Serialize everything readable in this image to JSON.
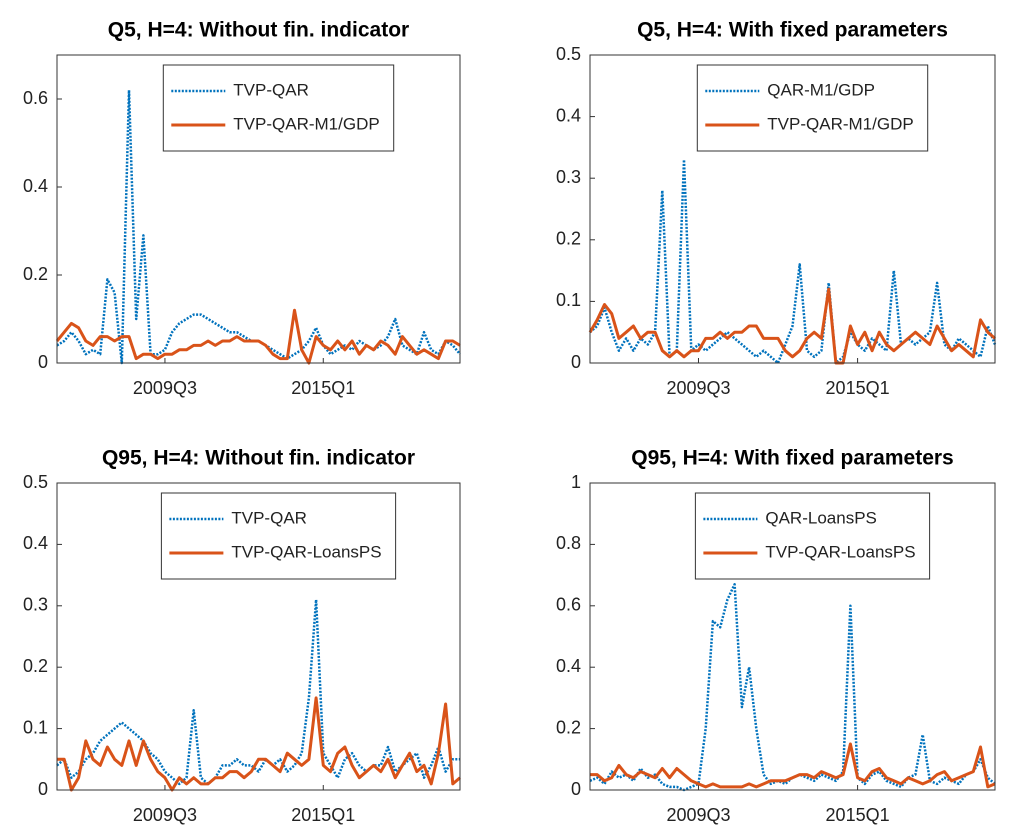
{
  "chart_data": [
    {
      "type": "line",
      "title": "Q5, H=4: Without fin. indicator",
      "categories": [
        null,
        null,
        null,
        null,
        null,
        null,
        null,
        null,
        null,
        null,
        null,
        null,
        null,
        null,
        null,
        "2009Q3",
        null,
        null,
        null,
        null,
        null,
        null,
        null,
        null,
        null,
        null,
        null,
        null,
        null,
        null,
        null,
        null,
        null,
        null,
        null,
        null,
        null,
        "2015Q1",
        null,
        null,
        null,
        null,
        null,
        null,
        null,
        null,
        null,
        null,
        null,
        null,
        null,
        null,
        null,
        null,
        null,
        null,
        null
      ],
      "ylim": [
        0,
        0.7
      ],
      "yticks": [
        0,
        0.2,
        0.4,
        0.6
      ],
      "legend": "north",
      "series": [
        {
          "name": "TVP-QAR",
          "color": "#0072BD",
          "dash": "dotted",
          "values": [
            0.04,
            0.05,
            0.07,
            0.05,
            0.02,
            0.03,
            0.02,
            0.19,
            0.16,
            0.0,
            0.62,
            0.1,
            0.29,
            0.02,
            0.02,
            0.03,
            0.07,
            0.09,
            0.1,
            0.11,
            0.11,
            0.1,
            0.09,
            0.08,
            0.07,
            0.07,
            0.06,
            0.05,
            0.05,
            0.04,
            0.03,
            0.02,
            0.01,
            0.02,
            0.03,
            0.05,
            0.08,
            0.04,
            0.02,
            0.03,
            0.04,
            0.03,
            0.05,
            0.04,
            0.03,
            0.04,
            0.06,
            0.1,
            0.04,
            0.03,
            0.02,
            0.07,
            0.03,
            0.02,
            0.05,
            0.04,
            0.02
          ]
        },
        {
          "name": "TVP-QAR-M1/GDP",
          "color": "#D95319",
          "dash": "solid",
          "values": [
            0.05,
            0.07,
            0.09,
            0.08,
            0.05,
            0.04,
            0.06,
            0.06,
            0.05,
            0.06,
            0.06,
            0.01,
            0.02,
            0.02,
            0.01,
            0.02,
            0.02,
            0.03,
            0.03,
            0.04,
            0.04,
            0.05,
            0.04,
            0.05,
            0.05,
            0.06,
            0.05,
            0.05,
            0.05,
            0.04,
            0.02,
            0.01,
            0.01,
            0.12,
            0.03,
            0.0,
            0.06,
            0.04,
            0.03,
            0.05,
            0.03,
            0.05,
            0.02,
            0.04,
            0.03,
            0.05,
            0.04,
            0.02,
            0.06,
            0.04,
            0.02,
            0.03,
            0.02,
            0.01,
            0.05,
            0.05,
            0.04
          ]
        }
      ]
    },
    {
      "type": "line",
      "title": "Q5, H=4: With fixed parameters",
      "categories": [
        null,
        null,
        null,
        null,
        null,
        null,
        null,
        null,
        null,
        null,
        null,
        null,
        null,
        null,
        null,
        "2009Q3",
        null,
        null,
        null,
        null,
        null,
        null,
        null,
        null,
        null,
        null,
        null,
        null,
        null,
        null,
        null,
        null,
        null,
        null,
        null,
        null,
        null,
        "2015Q1",
        null,
        null,
        null,
        null,
        null,
        null,
        null,
        null,
        null,
        null,
        null,
        null,
        null,
        null,
        null,
        null,
        null,
        null,
        null
      ],
      "ylim": [
        0,
        0.5
      ],
      "yticks": [
        0,
        0.1,
        0.2,
        0.3,
        0.4,
        0.5
      ],
      "legend": "north",
      "series": [
        {
          "name": "QAR-M1/GDP",
          "color": "#0072BD",
          "dash": "dotted",
          "values": [
            0.05,
            0.06,
            0.09,
            0.05,
            0.02,
            0.04,
            0.02,
            0.04,
            0.03,
            0.05,
            0.28,
            0.01,
            0.02,
            0.33,
            0.02,
            0.03,
            0.02,
            0.03,
            0.04,
            0.05,
            0.04,
            0.03,
            0.02,
            0.01,
            0.02,
            0.01,
            0.0,
            0.03,
            0.06,
            0.16,
            0.02,
            0.01,
            0.02,
            0.13,
            0.0,
            0.01,
            0.05,
            0.03,
            0.02,
            0.04,
            0.03,
            0.02,
            0.15,
            0.03,
            0.04,
            0.03,
            0.04,
            0.05,
            0.13,
            0.03,
            0.02,
            0.04,
            0.03,
            0.02,
            0.01,
            0.06,
            0.03
          ]
        },
        {
          "name": "TVP-QAR-M1/GDP",
          "color": "#D95319",
          "dash": "solid",
          "values": [
            0.05,
            0.07,
            0.095,
            0.08,
            0.04,
            0.05,
            0.06,
            0.04,
            0.05,
            0.05,
            0.02,
            0.01,
            0.02,
            0.01,
            0.02,
            0.02,
            0.04,
            0.04,
            0.05,
            0.04,
            0.05,
            0.05,
            0.06,
            0.06,
            0.04,
            0.04,
            0.04,
            0.02,
            0.01,
            0.02,
            0.04,
            0.05,
            0.04,
            0.12,
            0.0,
            0.0,
            0.06,
            0.03,
            0.05,
            0.02,
            0.05,
            0.03,
            0.02,
            0.03,
            0.04,
            0.05,
            0.04,
            0.03,
            0.06,
            0.04,
            0.02,
            0.03,
            0.02,
            0.01,
            0.07,
            0.05,
            0.04
          ]
        }
      ]
    },
    {
      "type": "line",
      "title": "Q95, H=4: Without fin. indicator",
      "categories": [
        null,
        null,
        null,
        null,
        null,
        null,
        null,
        null,
        null,
        null,
        null,
        null,
        null,
        null,
        null,
        "2009Q3",
        null,
        null,
        null,
        null,
        null,
        null,
        null,
        null,
        null,
        null,
        null,
        null,
        null,
        null,
        null,
        null,
        null,
        null,
        null,
        null,
        null,
        "2015Q1",
        null,
        null,
        null,
        null,
        null,
        null,
        null,
        null,
        null,
        null,
        null,
        null,
        null,
        null,
        null,
        null,
        null,
        null,
        null
      ],
      "ylim": [
        0,
        0.5
      ],
      "yticks": [
        0,
        0.1,
        0.2,
        0.3,
        0.4,
        0.5
      ],
      "legend": "north",
      "series": [
        {
          "name": "TVP-QAR",
          "color": "#0072BD",
          "dash": "dotted",
          "values": [
            0.04,
            0.05,
            0.02,
            0.03,
            0.05,
            0.06,
            0.08,
            0.09,
            0.1,
            0.11,
            0.1,
            0.09,
            0.08,
            0.06,
            0.05,
            0.03,
            0.02,
            0.01,
            0.02,
            0.13,
            0.02,
            0.01,
            0.02,
            0.04,
            0.04,
            0.05,
            0.04,
            0.04,
            0.03,
            0.05,
            0.04,
            0.05,
            0.03,
            0.04,
            0.06,
            0.15,
            0.31,
            0.06,
            0.04,
            0.02,
            0.05,
            0.06,
            0.04,
            0.03,
            0.04,
            0.04,
            0.07,
            0.03,
            0.04,
            0.05,
            0.06,
            0.02,
            0.04,
            0.07,
            0.03,
            0.05,
            0.05
          ]
        },
        {
          "name": "TVP-QAR-LoansPS",
          "color": "#D95319",
          "dash": "solid",
          "values": [
            0.05,
            0.05,
            0.0,
            0.02,
            0.08,
            0.05,
            0.04,
            0.07,
            0.05,
            0.04,
            0.08,
            0.04,
            0.08,
            0.05,
            0.03,
            0.02,
            0.0,
            0.02,
            0.01,
            0.02,
            0.01,
            0.01,
            0.02,
            0.02,
            0.03,
            0.03,
            0.02,
            0.03,
            0.05,
            0.05,
            0.04,
            0.03,
            0.06,
            0.05,
            0.04,
            0.05,
            0.15,
            0.04,
            0.03,
            0.06,
            0.07,
            0.04,
            0.02,
            0.03,
            0.04,
            0.03,
            0.05,
            0.02,
            0.04,
            0.06,
            0.03,
            0.04,
            0.01,
            0.06,
            0.14,
            0.01,
            0.02
          ]
        }
      ]
    },
    {
      "type": "line",
      "title": "Q95, H=4: With fixed parameters",
      "categories": [
        null,
        null,
        null,
        null,
        null,
        null,
        null,
        null,
        null,
        null,
        null,
        null,
        null,
        null,
        null,
        "2009Q3",
        null,
        null,
        null,
        null,
        null,
        null,
        null,
        null,
        null,
        null,
        null,
        null,
        null,
        null,
        null,
        null,
        null,
        null,
        null,
        null,
        null,
        "2015Q1",
        null,
        null,
        null,
        null,
        null,
        null,
        null,
        null,
        null,
        null,
        null,
        null,
        null,
        null,
        null,
        null,
        null,
        null,
        null
      ],
      "ylim": [
        0,
        1
      ],
      "yticks": [
        0,
        0.2,
        0.4,
        0.6,
        0.8,
        1
      ],
      "legend": "north",
      "series": [
        {
          "name": "QAR-LoansPS",
          "color": "#0072BD",
          "dash": "dotted",
          "values": [
            0.03,
            0.04,
            0.02,
            0.06,
            0.04,
            0.05,
            0.03,
            0.07,
            0.04,
            0.05,
            0.02,
            0.01,
            0.01,
            0.0,
            0.01,
            0.02,
            0.2,
            0.55,
            0.53,
            0.62,
            0.67,
            0.27,
            0.4,
            0.2,
            0.05,
            0.02,
            0.03,
            0.02,
            0.04,
            0.05,
            0.04,
            0.03,
            0.05,
            0.04,
            0.03,
            0.06,
            0.6,
            0.04,
            0.02,
            0.05,
            0.06,
            0.03,
            0.02,
            0.01,
            0.04,
            0.05,
            0.18,
            0.03,
            0.02,
            0.04,
            0.03,
            0.02,
            0.05,
            0.06,
            0.1,
            0.04,
            0.02
          ]
        },
        {
          "name": "TVP-QAR-LoansPS",
          "color": "#D95319",
          "dash": "solid",
          "values": [
            0.05,
            0.05,
            0.03,
            0.04,
            0.08,
            0.05,
            0.04,
            0.06,
            0.05,
            0.04,
            0.07,
            0.04,
            0.07,
            0.05,
            0.03,
            0.02,
            0.01,
            0.02,
            0.01,
            0.01,
            0.01,
            0.01,
            0.02,
            0.01,
            0.02,
            0.03,
            0.03,
            0.03,
            0.04,
            0.05,
            0.05,
            0.04,
            0.06,
            0.05,
            0.04,
            0.05,
            0.15,
            0.04,
            0.03,
            0.06,
            0.07,
            0.04,
            0.03,
            0.02,
            0.04,
            0.03,
            0.02,
            0.03,
            0.05,
            0.06,
            0.03,
            0.04,
            0.05,
            0.06,
            0.14,
            0.01,
            0.02
          ]
        }
      ]
    }
  ]
}
